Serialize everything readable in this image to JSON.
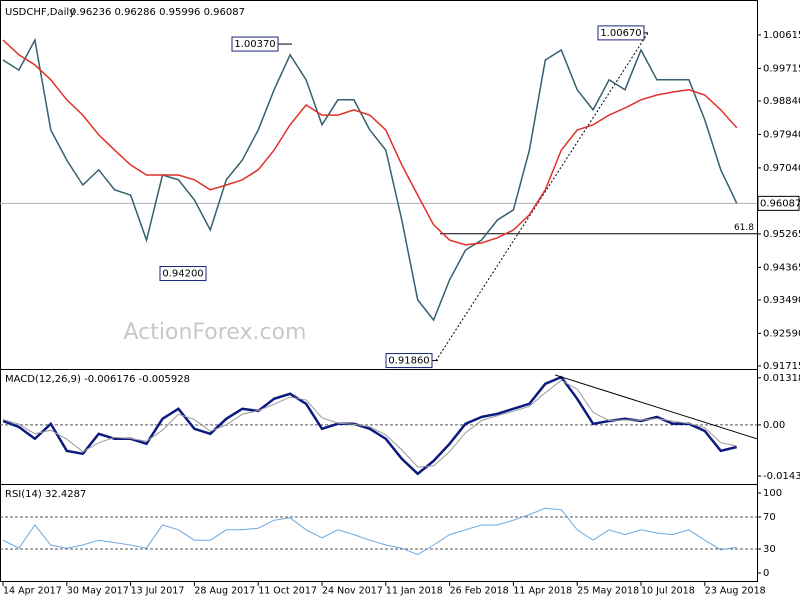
{
  "chart_data": [
    {
      "type": "line",
      "title": "USDCHF,Daily",
      "subtitle": "0.96236 0.96286 0.95996 0.96087",
      "categories": [
        "14 Apr 2017",
        null,
        null,
        null,
        "30 May 2017",
        null,
        null,
        null,
        "13 Jul 2017",
        null,
        null,
        null,
        "28 Aug 2017",
        null,
        null,
        null,
        "11 Oct 2017",
        null,
        null,
        null,
        "24 Nov 2017",
        null,
        null,
        null,
        "11 Jan 2018",
        null,
        null,
        null,
        "26 Feb 2018",
        null,
        null,
        null,
        "11 Apr 2018",
        null,
        null,
        null,
        "25 May 2018",
        null,
        null,
        null,
        "10 Jul 2018",
        null,
        null,
        null,
        "23 Aug 2018",
        null,
        null
      ],
      "series": [
        {
          "color": "#34606f",
          "values": [
            0.9994,
            0.9967,
            1.0048,
            0.9806,
            0.9725,
            0.9658,
            0.9699,
            0.9645,
            0.9631,
            0.951,
            0.9685,
            0.9672,
            0.9618,
            0.9537,
            0.9672,
            0.9725,
            0.9806,
            0.9914,
            1.0008,
            0.9941,
            0.982,
            0.9887,
            0.9887,
            0.9806,
            0.9752,
            0.9564,
            0.9349,
            0.9295,
            0.9403,
            0.9483,
            0.951,
            0.9564,
            0.9591,
            0.9752,
            0.9994,
            1.0021,
            0.9914,
            0.986,
            0.9941,
            0.9914,
            1.0021,
            0.9941,
            0.9941,
            0.9941,
            0.9833,
            0.9699,
            0.9609
          ]
        },
        {
          "color": "#e0302a",
          "values": [
            1.0048,
            1.0008,
            0.9981,
            0.9941,
            0.9887,
            0.9846,
            0.9793,
            0.9752,
            0.9712,
            0.9685,
            0.9685,
            0.9685,
            0.9672,
            0.9645,
            0.9658,
            0.9672,
            0.9699,
            0.9752,
            0.982,
            0.9873,
            0.9846,
            0.9846,
            0.986,
            0.9846,
            0.9806,
            0.9712,
            0.9631,
            0.9551,
            0.951,
            0.9497,
            0.9502,
            0.9516,
            0.9537,
            0.9578,
            0.9645,
            0.9752,
            0.9806,
            0.982,
            0.9846,
            0.9865,
            0.9887,
            0.99,
            0.9908,
            0.9914,
            0.99,
            0.986,
            0.9812
          ]
        }
      ],
      "ylim": [
        0.9166,
        1.0142
      ],
      "yticks": [
        {
          "value": 1.00615,
          "label": "1.00615"
        },
        {
          "value": 0.99715,
          "label": "0.99715"
        },
        {
          "value": 0.9884,
          "label": "0.98840"
        },
        {
          "value": 0.9794,
          "label": "0.97940"
        },
        {
          "value": 0.9704,
          "label": "0.97040"
        },
        {
          "value": 0.95265,
          "label": "0.95265"
        },
        {
          "value": 0.94365,
          "label": "0.94365"
        },
        {
          "value": 0.9349,
          "label": "0.93490"
        },
        {
          "value": 0.9259,
          "label": "0.92590"
        },
        {
          "value": 0.91715,
          "label": "0.91715"
        }
      ],
      "annotations": [
        {
          "value": 1.0037,
          "label": "1.00370"
        },
        {
          "value": 0.942,
          "label": "0.94200"
        },
        {
          "value": 0.9186,
          "label": "0.91860"
        },
        {
          "value": 1.0067,
          "label": "1.00670"
        }
      ],
      "fib_level": {
        "value": 0.9527,
        "label": "61.8"
      },
      "last_price": {
        "value": 0.96087,
        "label": "0.96087"
      },
      "watermark": "ActionForex.com"
    },
    {
      "type": "line",
      "title": "MACD(12,26,9) -0.006176 -0.005928",
      "series": [
        {
          "color": "#0d1a80",
          "values": [
            0.0011,
            -0.0006,
            -0.0039,
            0.0003,
            -0.0073,
            -0.0081,
            -0.0025,
            -0.0039,
            -0.0039,
            -0.0053,
            0.0017,
            0.0045,
            -0.0011,
            -0.0025,
            0.0017,
            0.0045,
            0.0039,
            0.0073,
            0.0087,
            0.0059,
            -0.0011,
            0.0003,
            0.0003,
            -0.0011,
            -0.0039,
            -0.0095,
            -0.0137,
            -0.0101,
            -0.0053,
            0.0003,
            0.0022,
            0.0031,
            0.0045,
            0.0059,
            0.0115,
            0.0134,
            0.0073,
            0.0003,
            0.0011,
            0.0017,
            0.0011,
            0.0022,
            0.0003,
            0.0003,
            -0.0017,
            -0.0073,
            -0.0062
          ]
        },
        {
          "color": "#9a9a9a",
          "values": [
            0.0015,
            0.0002,
            -0.0025,
            -0.0015,
            -0.004,
            -0.0075,
            -0.005,
            -0.0035,
            -0.0038,
            -0.0046,
            -0.0015,
            0.003,
            0.0015,
            -0.0018,
            0.0,
            0.003,
            0.004,
            0.0058,
            0.0078,
            0.007,
            0.002,
            0.0005,
            0.0002,
            -0.0005,
            -0.0028,
            -0.007,
            -0.0118,
            -0.0115,
            -0.0075,
            -0.0022,
            0.0012,
            0.0026,
            0.0038,
            0.0052,
            0.009,
            0.0125,
            0.01,
            0.0035,
            0.0012,
            0.0014,
            0.0013,
            0.0018,
            0.001,
            0.0004,
            -0.0008,
            -0.005,
            -0.0059
          ]
        }
      ],
      "ylim": [
        -0.016,
        0.0151
      ],
      "yticks": [
        0.013184,
        {
          "value": 0,
          "label": "0.00"
        },
        -0.014339
      ],
      "levels": [
        0
      ],
      "trendline": [
        0.014,
        -0.0039
      ]
    },
    {
      "type": "line",
      "title": "RSI(14) 32.4287",
      "series": [
        {
          "color": "#6fa8dc",
          "values": [
            41,
            31,
            60,
            35,
            31,
            35,
            41,
            38,
            35,
            31,
            60,
            54,
            41,
            41,
            54,
            54,
            56,
            66,
            69,
            54,
            44,
            54,
            48,
            41,
            35,
            31,
            23,
            35,
            48,
            54,
            60,
            60,
            66,
            73,
            81,
            79,
            54,
            41,
            54,
            48,
            54,
            50,
            48,
            54,
            41,
            29,
            32
          ]
        }
      ],
      "ylim": [
        -8.75,
        108.75
      ],
      "yticks": [
        100,
        70,
        30,
        0
      ],
      "levels": [
        70,
        30
      ]
    }
  ]
}
